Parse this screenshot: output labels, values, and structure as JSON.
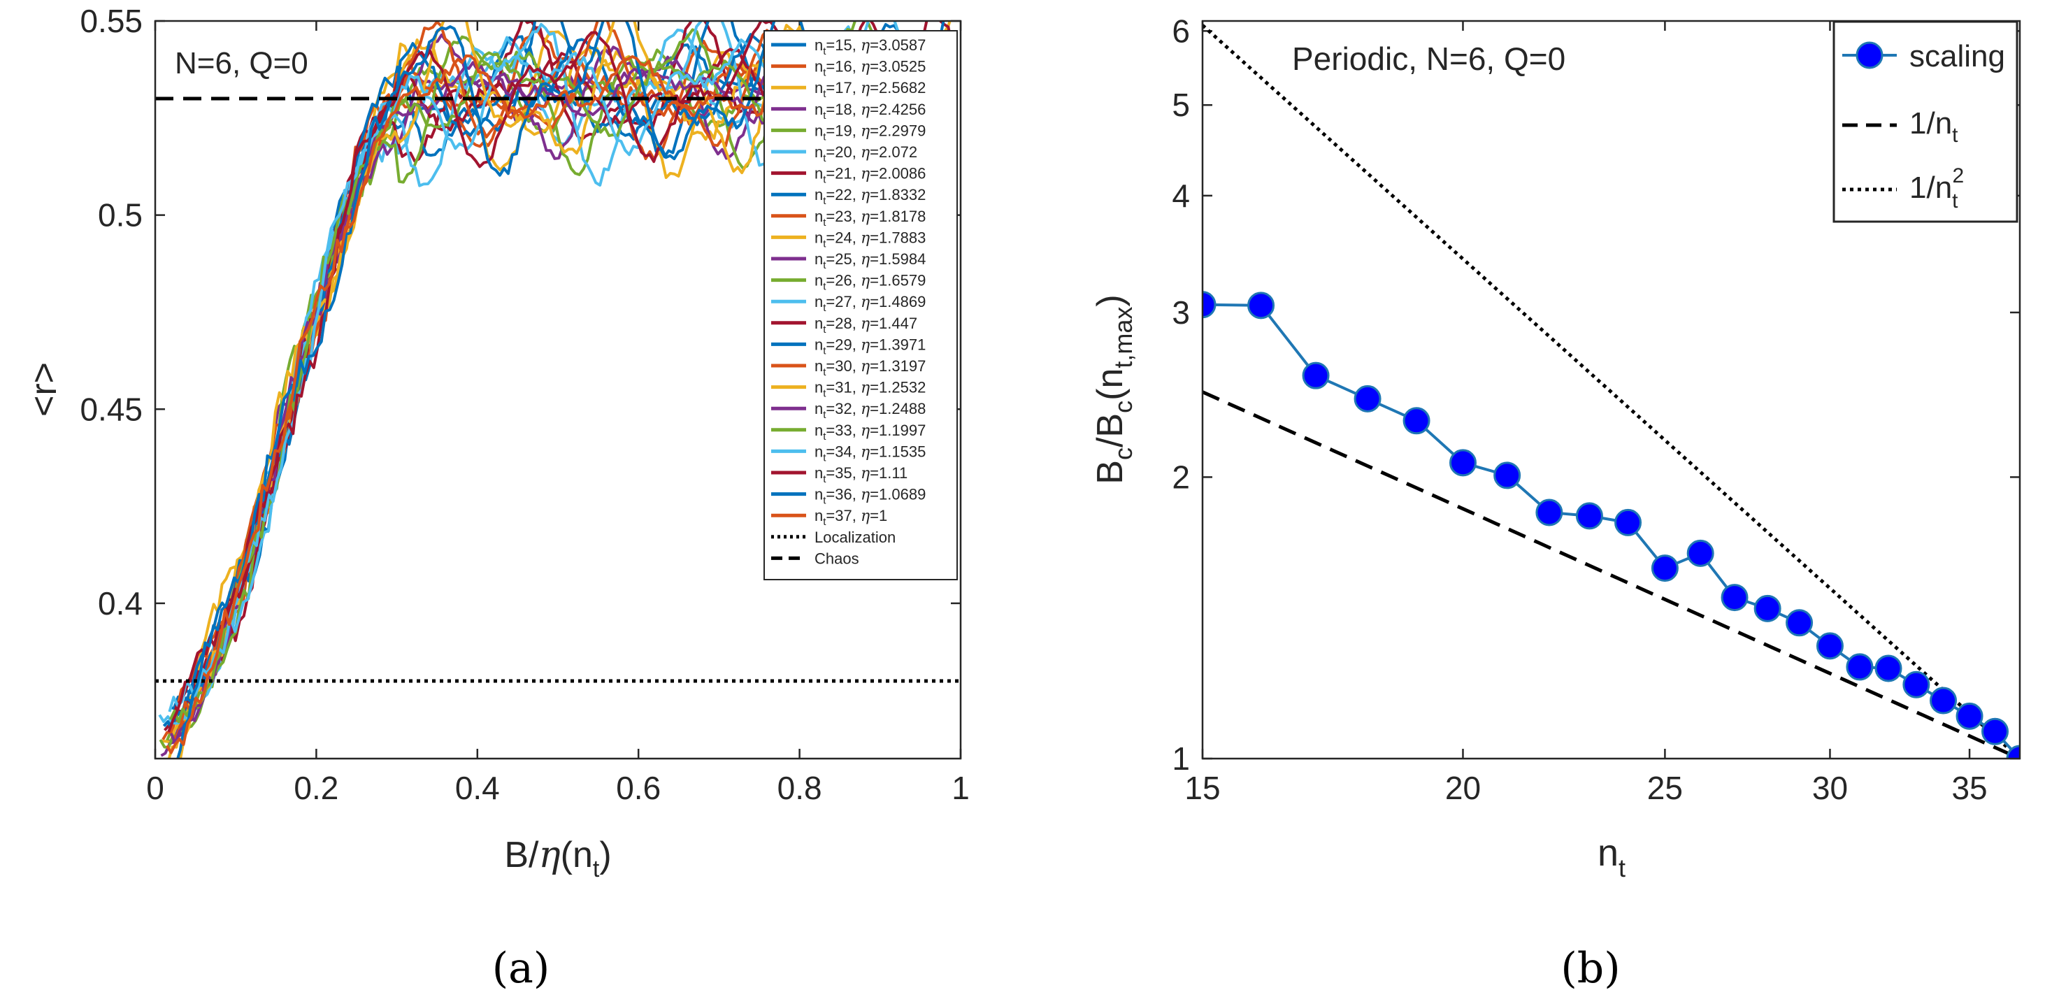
{
  "chart_data": [
    {
      "type": "line",
      "panel_label": "a",
      "annotation": "N=6, Q=0",
      "xlabel": "B/η(n_t)",
      "ylabel": "<r>",
      "xlim": [
        0,
        1
      ],
      "ylim": [
        0.36,
        0.55
      ],
      "xticks": [
        0,
        0.2,
        0.4,
        0.6,
        0.8,
        1
      ],
      "xtick_labels": [
        "0",
        "0.2",
        "0.4",
        "0.6",
        "0.8",
        "1"
      ],
      "yticks": [
        0.4,
        0.45,
        0.5,
        0.55
      ],
      "ytick_labels": [
        "0.4",
        "0.45",
        "0.5",
        "0.55"
      ],
      "legend_position": "right",
      "series": [
        {
          "name": "n_t=15, η=3.0587",
          "nt": "15",
          "eta": "3.0587",
          "color": "#0072BD"
        },
        {
          "name": "n_t=16, η=3.0525",
          "nt": "16",
          "eta": "3.0525",
          "color": "#D95319"
        },
        {
          "name": "n_t=17, η=2.5682",
          "nt": "17",
          "eta": "2.5682",
          "color": "#EDB120"
        },
        {
          "name": "n_t=18, η=2.4256",
          "nt": "18",
          "eta": "2.4256",
          "color": "#7E2F8E"
        },
        {
          "name": "n_t=19, η=2.2979",
          "nt": "19",
          "eta": "2.2979",
          "color": "#77AC30"
        },
        {
          "name": "n_t=20, η=2.072",
          "nt": "20",
          "eta": "2.072",
          "color": "#4DBEEE"
        },
        {
          "name": "n_t=21, η=2.0086",
          "nt": "21",
          "eta": "2.0086",
          "color": "#A2142F"
        },
        {
          "name": "n_t=22, η=1.8332",
          "nt": "22",
          "eta": "1.8332",
          "color": "#0072BD"
        },
        {
          "name": "n_t=23, η=1.8178",
          "nt": "23",
          "eta": "1.8178",
          "color": "#D95319"
        },
        {
          "name": "n_t=24, η=1.7883",
          "nt": "24",
          "eta": "1.7883",
          "color": "#EDB120"
        },
        {
          "name": "n_t=25, η=1.5984",
          "nt": "25",
          "eta": "1.5984",
          "color": "#7E2F8E"
        },
        {
          "name": "n_t=26, η=1.6579",
          "nt": "26",
          "eta": "1.6579",
          "color": "#77AC30"
        },
        {
          "name": "n_t=27, η=1.4869",
          "nt": "27",
          "eta": "1.4869",
          "color": "#4DBEEE"
        },
        {
          "name": "n_t=28, η=1.447",
          "nt": "28",
          "eta": "1.447",
          "color": "#A2142F"
        },
        {
          "name": "n_t=29, η=1.3971",
          "nt": "29",
          "eta": "1.3971",
          "color": "#0072BD"
        },
        {
          "name": "n_t=30, η=1.3197",
          "nt": "30",
          "eta": "1.3197",
          "color": "#D95319"
        },
        {
          "name": "n_t=31, η=1.2532",
          "nt": "31",
          "eta": "1.2532",
          "color": "#EDB120"
        },
        {
          "name": "n_t=32, η=1.2488",
          "nt": "32",
          "eta": "1.2488",
          "color": "#7E2F8E"
        },
        {
          "name": "n_t=33, η=1.1997",
          "nt": "33",
          "eta": "1.1997",
          "color": "#77AC30"
        },
        {
          "name": "n_t=34, η=1.1535",
          "nt": "34",
          "eta": "1.1535",
          "color": "#4DBEEE"
        },
        {
          "name": "n_t=35, η=1.11",
          "nt": "35",
          "eta": "1.11",
          "color": "#A2142F"
        },
        {
          "name": "n_t=36, η=1.0689",
          "nt": "36",
          "eta": "1.0689",
          "color": "#0072BD"
        },
        {
          "name": "n_t=37, η=1",
          "nt": "37",
          "eta": "1",
          "color": "#D95319"
        }
      ],
      "reference_lines": [
        {
          "name": "Localization",
          "y": 0.38,
          "style": "dotted"
        },
        {
          "name": "Chaos",
          "y": 0.53,
          "style": "dashed"
        }
      ]
    },
    {
      "type": "line",
      "panel_label": "b",
      "annotation": "Periodic, N=6, Q=0",
      "xlabel": "n_t",
      "ylabel": "B_c/B_c(n_t,max)",
      "x_scale": "log",
      "y_scale": "log",
      "xlim": [
        15,
        37
      ],
      "ylim": [
        1,
        6.15
      ],
      "xticks": [
        15,
        20,
        25,
        30,
        35
      ],
      "xtick_labels": [
        "15",
        "20",
        "25",
        "30",
        "35"
      ],
      "yticks": [
        1,
        2,
        3,
        4,
        5,
        6
      ],
      "ytick_labels": [
        "1",
        "2",
        "3",
        "4",
        "5",
        "6"
      ],
      "legend_position": "top-right",
      "series": [
        {
          "name": "scaling",
          "color": "#0000FF",
          "edge_color": "#1F77B4",
          "x": [
            15,
            16,
            17,
            18,
            19,
            20,
            21,
            22,
            23,
            24,
            25,
            26,
            27,
            28,
            29,
            30,
            31,
            32,
            33,
            34,
            35,
            36,
            37
          ],
          "y": [
            3.0587,
            3.0525,
            2.5682,
            2.4256,
            2.2979,
            2.072,
            2.0086,
            1.8332,
            1.8178,
            1.7883,
            1.5984,
            1.6579,
            1.4869,
            1.447,
            1.3971,
            1.3197,
            1.2532,
            1.2488,
            1.1997,
            1.1535,
            1.11,
            1.0689,
            1
          ]
        },
        {
          "name": "1/n_t",
          "style": "dashed",
          "exponent": 1
        },
        {
          "name": "1/n_t^2",
          "style": "dotted",
          "exponent": 2
        }
      ]
    }
  ],
  "captions": {
    "a": "(a)",
    "b": "(b)"
  }
}
